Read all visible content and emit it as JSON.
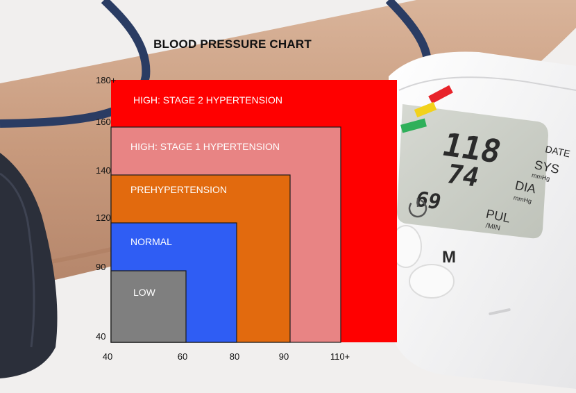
{
  "chart_data": {
    "type": "area",
    "title": "BLOOD PRESSURE CHART",
    "xlabel": "",
    "ylabel": "",
    "x_ticks": [
      "40",
      "60",
      "80",
      "90",
      "110+"
    ],
    "y_ticks": [
      "180+",
      "160",
      "140",
      "120",
      "90",
      "40"
    ],
    "categories": [
      {
        "name": "HIGH: STAGE 2 HYPERTENSION",
        "systolic_max": "180+",
        "diastolic_max": "110+",
        "color": "#ff0000",
        "label_color": "#ffffff"
      },
      {
        "name": "HIGH: STAGE 1 HYPERTENSION",
        "systolic_max": 160,
        "diastolic_max": 110,
        "color": "#e88484",
        "label_color": "#ffffff"
      },
      {
        "name": "PREHYPERTENSION",
        "systolic_max": 140,
        "diastolic_max": 90,
        "color": "#e26a0e",
        "label_color": "#ffffff"
      },
      {
        "name": "NORMAL",
        "systolic_max": 120,
        "diastolic_max": 80,
        "color": "#2f5df4",
        "label_color": "#ffffff"
      },
      {
        "name": "LOW",
        "systolic_max": 90,
        "diastolic_max": 60,
        "color": "#7f7f7f",
        "label_color": "#ffffff"
      }
    ]
  },
  "device": {
    "sys_value": "118",
    "dia_value": "74",
    "pul_value": "69",
    "labels": {
      "date": "DATE",
      "sys": "SYS",
      "sys_unit": "mmHg",
      "dia": "DIA",
      "dia_unit": "mmHg",
      "pul": "PUL",
      "pul_unit": "/MIN",
      "mem_button": "M"
    },
    "status_colors": [
      "#e8232a",
      "#f2d21b",
      "#2fb05a"
    ]
  }
}
